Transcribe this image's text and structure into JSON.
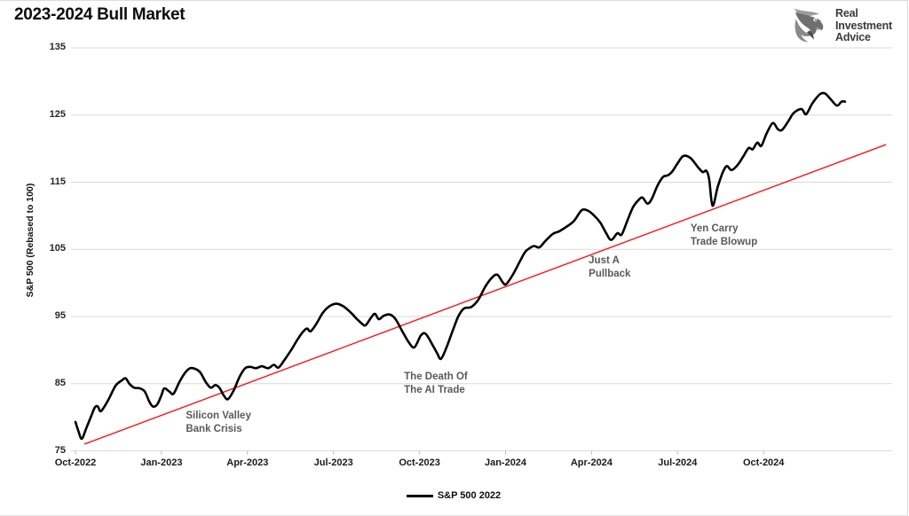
{
  "page": {
    "title": "2023-2024 Bull Market"
  },
  "logo": {
    "lines": [
      "Real",
      "Investment",
      "Advice"
    ],
    "icon": "eagle-icon",
    "color": "#3b3b3b"
  },
  "chart_data": {
    "type": "line",
    "title": "2023-2024 Bull Market",
    "xlabel": "",
    "ylabel": "S&P 500 (Rebased to 100)",
    "ylim": [
      75,
      135
    ],
    "y_ticks": [
      135,
      125,
      115,
      105,
      95,
      85,
      75
    ],
    "x_tick_labels": [
      "Oct-2022",
      "Jan-2023",
      "Apr-2023",
      "Jul-2023",
      "Oct-2023",
      "Jan-2024",
      "Apr-2024",
      "Jul-2024",
      "Oct-2024"
    ],
    "x_tick_months": [
      0,
      3,
      6,
      9,
      12,
      15,
      18,
      21,
      24
    ],
    "x_unit": "months since Oct-2022",
    "grid": "horizontal-only",
    "gridline_color": "#d9d9d9",
    "legend": {
      "position": "bottom-center",
      "label": "S&P 500 2022",
      "swatch_color": "#000000"
    },
    "series": [
      {
        "name": "S&P 500 2022",
        "color": "#000000",
        "width": 2.6,
        "points": [
          [
            0,
            79.3
          ],
          [
            0.1,
            78
          ],
          [
            0.22,
            76.8
          ],
          [
            0.38,
            78.4
          ],
          [
            0.55,
            80.2
          ],
          [
            0.68,
            81.5
          ],
          [
            0.78,
            81.6
          ],
          [
            0.86,
            80.9
          ],
          [
            0.95,
            81.2
          ],
          [
            1.15,
            82.6
          ],
          [
            1.4,
            84.7
          ],
          [
            1.62,
            85.5
          ],
          [
            1.75,
            85.8
          ],
          [
            1.88,
            85
          ],
          [
            2.05,
            84.4
          ],
          [
            2.25,
            84.3
          ],
          [
            2.42,
            83.8
          ],
          [
            2.58,
            82.3
          ],
          [
            2.7,
            81.6
          ],
          [
            2.85,
            81.9
          ],
          [
            3,
            83.3
          ],
          [
            3.1,
            84.3
          ],
          [
            3.28,
            83.8
          ],
          [
            3.42,
            83.5
          ],
          [
            3.62,
            85.2
          ],
          [
            3.82,
            86.6
          ],
          [
            4,
            87.3
          ],
          [
            4.18,
            87.2
          ],
          [
            4.35,
            86.7
          ],
          [
            4.55,
            85.2
          ],
          [
            4.72,
            84.4
          ],
          [
            4.88,
            84.8
          ],
          [
            5.02,
            84.4
          ],
          [
            5.18,
            83.2
          ],
          [
            5.32,
            82.7
          ],
          [
            5.52,
            84
          ],
          [
            5.72,
            86
          ],
          [
            5.92,
            87.3
          ],
          [
            6.1,
            87.5
          ],
          [
            6.3,
            87.3
          ],
          [
            6.5,
            87.6
          ],
          [
            6.72,
            87.3
          ],
          [
            6.92,
            87.8
          ],
          [
            7.08,
            87.4
          ],
          [
            7.3,
            88.6
          ],
          [
            7.55,
            90.2
          ],
          [
            7.78,
            91.8
          ],
          [
            7.95,
            92.8
          ],
          [
            8.08,
            93.2
          ],
          [
            8.2,
            92.8
          ],
          [
            8.4,
            93.9
          ],
          [
            8.62,
            95.5
          ],
          [
            8.85,
            96.5
          ],
          [
            9.1,
            96.9
          ],
          [
            9.35,
            96.5
          ],
          [
            9.6,
            95.6
          ],
          [
            9.8,
            94.7
          ],
          [
            10,
            93.9
          ],
          [
            10.12,
            93.7
          ],
          [
            10.32,
            94.9
          ],
          [
            10.45,
            95.4
          ],
          [
            10.58,
            94.6
          ],
          [
            10.75,
            95.1
          ],
          [
            10.95,
            95.3
          ],
          [
            11.15,
            94.7
          ],
          [
            11.4,
            92.8
          ],
          [
            11.62,
            91.2
          ],
          [
            11.82,
            90.4
          ],
          [
            12.05,
            92.2
          ],
          [
            12.22,
            92.4
          ],
          [
            12.45,
            90.8
          ],
          [
            12.62,
            89.5
          ],
          [
            12.75,
            88.7
          ],
          [
            12.95,
            90.5
          ],
          [
            13.15,
            92.8
          ],
          [
            13.35,
            95
          ],
          [
            13.55,
            96.2
          ],
          [
            13.8,
            96.4
          ],
          [
            14.05,
            97.5
          ],
          [
            14.3,
            99.5
          ],
          [
            14.55,
            100.9
          ],
          [
            14.72,
            101.2
          ],
          [
            14.9,
            100.1
          ],
          [
            15.02,
            99.8
          ],
          [
            15.25,
            101.2
          ],
          [
            15.5,
            103.2
          ],
          [
            15.68,
            104.6
          ],
          [
            15.85,
            105.2
          ],
          [
            16,
            105.5
          ],
          [
            16.18,
            105.3
          ],
          [
            16.4,
            106.3
          ],
          [
            16.65,
            107.3
          ],
          [
            16.88,
            107.7
          ],
          [
            17.1,
            108.3
          ],
          [
            17.38,
            109.2
          ],
          [
            17.65,
            110.8
          ],
          [
            17.85,
            110.8
          ],
          [
            18.05,
            110.2
          ],
          [
            18.3,
            109
          ],
          [
            18.5,
            107.5
          ],
          [
            18.68,
            106.4
          ],
          [
            18.9,
            107.4
          ],
          [
            19.05,
            107.2
          ],
          [
            19.25,
            109.3
          ],
          [
            19.45,
            111.3
          ],
          [
            19.65,
            112.4
          ],
          [
            19.78,
            112.7
          ],
          [
            19.95,
            111.8
          ],
          [
            20.1,
            112.5
          ],
          [
            20.3,
            114.5
          ],
          [
            20.5,
            115.8
          ],
          [
            20.65,
            116
          ],
          [
            20.8,
            116.5
          ],
          [
            21,
            117.8
          ],
          [
            21.2,
            118.9
          ],
          [
            21.45,
            118.6
          ],
          [
            21.7,
            117.3
          ],
          [
            21.88,
            116.5
          ],
          [
            22,
            116.7
          ],
          [
            22.1,
            115.5
          ],
          [
            22.22,
            111.5
          ],
          [
            22.4,
            114.3
          ],
          [
            22.58,
            116.5
          ],
          [
            22.72,
            117.4
          ],
          [
            22.88,
            116.8
          ],
          [
            23.1,
            117.6
          ],
          [
            23.3,
            118.9
          ],
          [
            23.48,
            120.1
          ],
          [
            23.62,
            119.9
          ],
          [
            23.78,
            120.9
          ],
          [
            23.92,
            120.4
          ],
          [
            24.1,
            122.2
          ],
          [
            24.32,
            123.8
          ],
          [
            24.5,
            122.9
          ],
          [
            24.65,
            122.8
          ],
          [
            24.88,
            124.2
          ],
          [
            25.05,
            125.3
          ],
          [
            25.32,
            125.9
          ],
          [
            25.48,
            125.1
          ],
          [
            25.68,
            126.6
          ],
          [
            25.85,
            127.6
          ],
          [
            26,
            128.2
          ],
          [
            26.15,
            128.2
          ],
          [
            26.35,
            127.3
          ],
          [
            26.56,
            126.4
          ],
          [
            26.72,
            127
          ],
          [
            26.84,
            127
          ]
        ]
      }
    ],
    "trendline": {
      "name": "bull-market-trendline",
      "color": "#ff1414",
      "width": 1.4,
      "points": [
        [
          0.31,
          76.0
        ],
        [
          28.27,
          120.6
        ]
      ]
    },
    "annotations": [
      {
        "id": "svb-crisis",
        "lines": [
          "Silicon Valley",
          "Bank Crisis"
        ],
        "month": 3.85,
        "value": 81.1
      },
      {
        "id": "ai-trade",
        "lines": [
          "The Death Of",
          "The AI Trade"
        ],
        "month": 11.46,
        "value": 86.9
      },
      {
        "id": "pullback",
        "lines": [
          "Just A",
          "Pullback"
        ],
        "month": 17.9,
        "value": 104.2
      },
      {
        "id": "yen-carry",
        "lines": [
          "Yen Carry",
          "Trade Blowup"
        ],
        "month": 21.45,
        "value": 109.0
      }
    ]
  }
}
